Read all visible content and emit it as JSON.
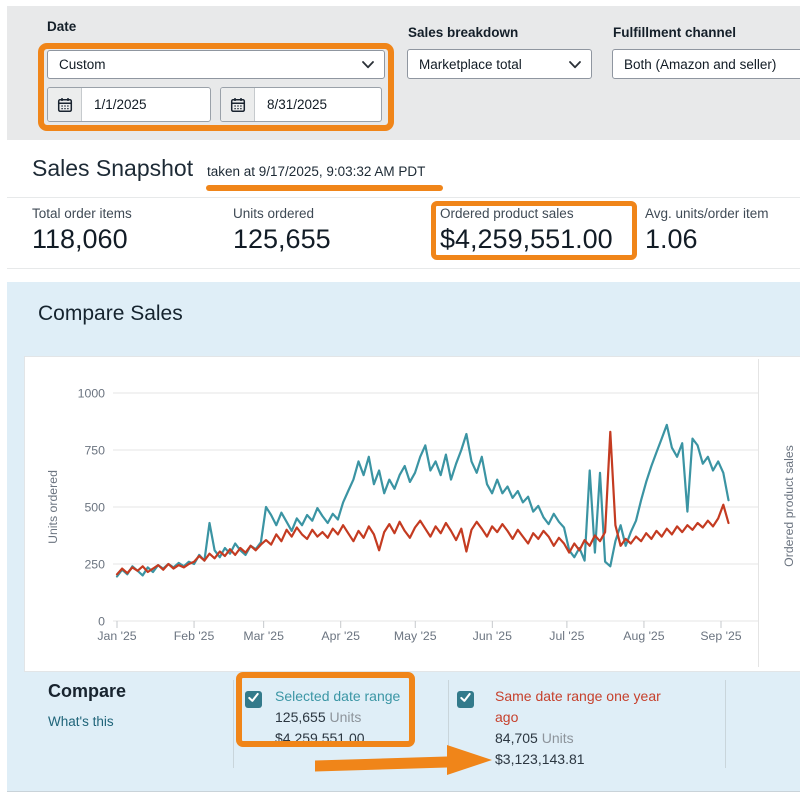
{
  "filters": {
    "date": {
      "label": "Date",
      "selected": "Custom",
      "start": "1/1/2025",
      "end": "8/31/2025"
    },
    "sales_breakdown": {
      "label": "Sales breakdown",
      "selected": "Marketplace total"
    },
    "fulfillment_channel": {
      "label": "Fulfillment channel",
      "selected": "Both (Amazon and seller)"
    }
  },
  "snapshot": {
    "title": "Sales Snapshot",
    "taken_at": "taken at 9/17/2025, 9:03:32 AM PDT",
    "stats": [
      {
        "label": "Total order items",
        "value": "118,060"
      },
      {
        "label": "Units ordered",
        "value": "125,655"
      },
      {
        "label": "Ordered product sales",
        "value": "$4,259,551.00"
      },
      {
        "label": "Avg. units/order item",
        "value": "1.06"
      }
    ]
  },
  "compare_sales": {
    "title": "Compare Sales",
    "chart_data": {
      "type": "line",
      "x": {
        "tick_labels": [
          "Jan '25",
          "Feb '25",
          "Mar '25",
          "Apr '25",
          "May '25",
          "Jun '25",
          "Jul '25",
          "Aug '25",
          "Sep '25"
        ],
        "tick_days": [
          0,
          31,
          59,
          90,
          120,
          151,
          181,
          212,
          243
        ],
        "domain_days": [
          0,
          246
        ]
      },
      "y_left": {
        "label": "Units ordered",
        "ticks": [
          0,
          250,
          500,
          750,
          1000
        ],
        "range": [
          0,
          1000
        ]
      },
      "y_right": {
        "label": "Ordered product sales"
      },
      "grid": true,
      "series": [
        {
          "name": "Selected date range",
          "color": "#3b94a3",
          "values": [
            195,
            225,
            205,
            240,
            220,
            200,
            235,
            215,
            245,
            230,
            250,
            235,
            255,
            240,
            260,
            250,
            290,
            265,
            430,
            310,
            280,
            320,
            295,
            340,
            310,
            290,
            330,
            315,
            345,
            500,
            465,
            420,
            475,
            435,
            395,
            450,
            420,
            465,
            440,
            495,
            460,
            430,
            470,
            445,
            520,
            570,
            620,
            700,
            640,
            720,
            600,
            660,
            560,
            620,
            580,
            640,
            680,
            610,
            650,
            720,
            770,
            660,
            700,
            640,
            730,
            620,
            690,
            750,
            820,
            700,
            650,
            720,
            600,
            560,
            620,
            560,
            590,
            540,
            570,
            520,
            545,
            480,
            505,
            455,
            425,
            470,
            435,
            410,
            310,
            280,
            320,
            265,
            660,
            300,
            650,
            260,
            240,
            350,
            420,
            330,
            390,
            440,
            530,
            610,
            680,
            740,
            800,
            860,
            760,
            720,
            780,
            480,
            800,
            770,
            690,
            720,
            660,
            700,
            650,
            530
          ]
        },
        {
          "name": "Same date range one year ago",
          "color": "#c43b21",
          "values": [
            205,
            230,
            210,
            235,
            220,
            240,
            215,
            230,
            245,
            225,
            250,
            230,
            245,
            235,
            250,
            260,
            285,
            265,
            295,
            275,
            305,
            285,
            315,
            290,
            320,
            300,
            330,
            310,
            335,
            355,
            335,
            380,
            350,
            400,
            370,
            410,
            380,
            360,
            400,
            370,
            390,
            365,
            405,
            380,
            420,
            385,
            350,
            395,
            365,
            415,
            380,
            310,
            390,
            425,
            385,
            435,
            395,
            365,
            410,
            440,
            405,
            370,
            415,
            385,
            430,
            395,
            355,
            405,
            305,
            400,
            435,
            405,
            370,
            415,
            390,
            425,
            395,
            360,
            400,
            370,
            340,
            385,
            360,
            395,
            370,
            330,
            365,
            340,
            300,
            340,
            310,
            355,
            330,
            375,
            350,
            390,
            830,
            420,
            330,
            360,
            340,
            370,
            350,
            385,
            360,
            395,
            370,
            405,
            380,
            415,
            390,
            420,
            400,
            430,
            410,
            440,
            415,
            450,
            510,
            430
          ]
        }
      ]
    }
  },
  "compare": {
    "title": "Compare",
    "whats_this": "What's this",
    "items": [
      {
        "label": "Selected date range",
        "units": "125,655",
        "units_suffix": "Units",
        "amount": "$4,259,551.00",
        "checked": true,
        "color": "#3b96a5"
      },
      {
        "label": "Same date range one year ago",
        "units": "84,705",
        "units_suffix": "Units",
        "amount": "$3,123,143.81",
        "checked": true,
        "color": "#c6402c"
      }
    ]
  },
  "icons": {
    "calendar": "calendar-icon",
    "chevron_down": "chevron-down-icon",
    "check": "✓",
    "annotation_arrow": "➜"
  },
  "colors": {
    "annotation_orange": "#f08519",
    "panel_blue": "#dfeef7",
    "filter_bar_gray": "#e8e9ea",
    "series_current": "#3b94a3",
    "series_previous": "#c43b21",
    "checkbox_teal": "#337a8b",
    "link_teal": "#1f6479"
  },
  "annotations": [
    "date-filter-box",
    "snapshot-timestamp-underline",
    "ordered-product-sales-box",
    "selected-date-range-box",
    "arrow-to-previous-year-sales"
  ]
}
